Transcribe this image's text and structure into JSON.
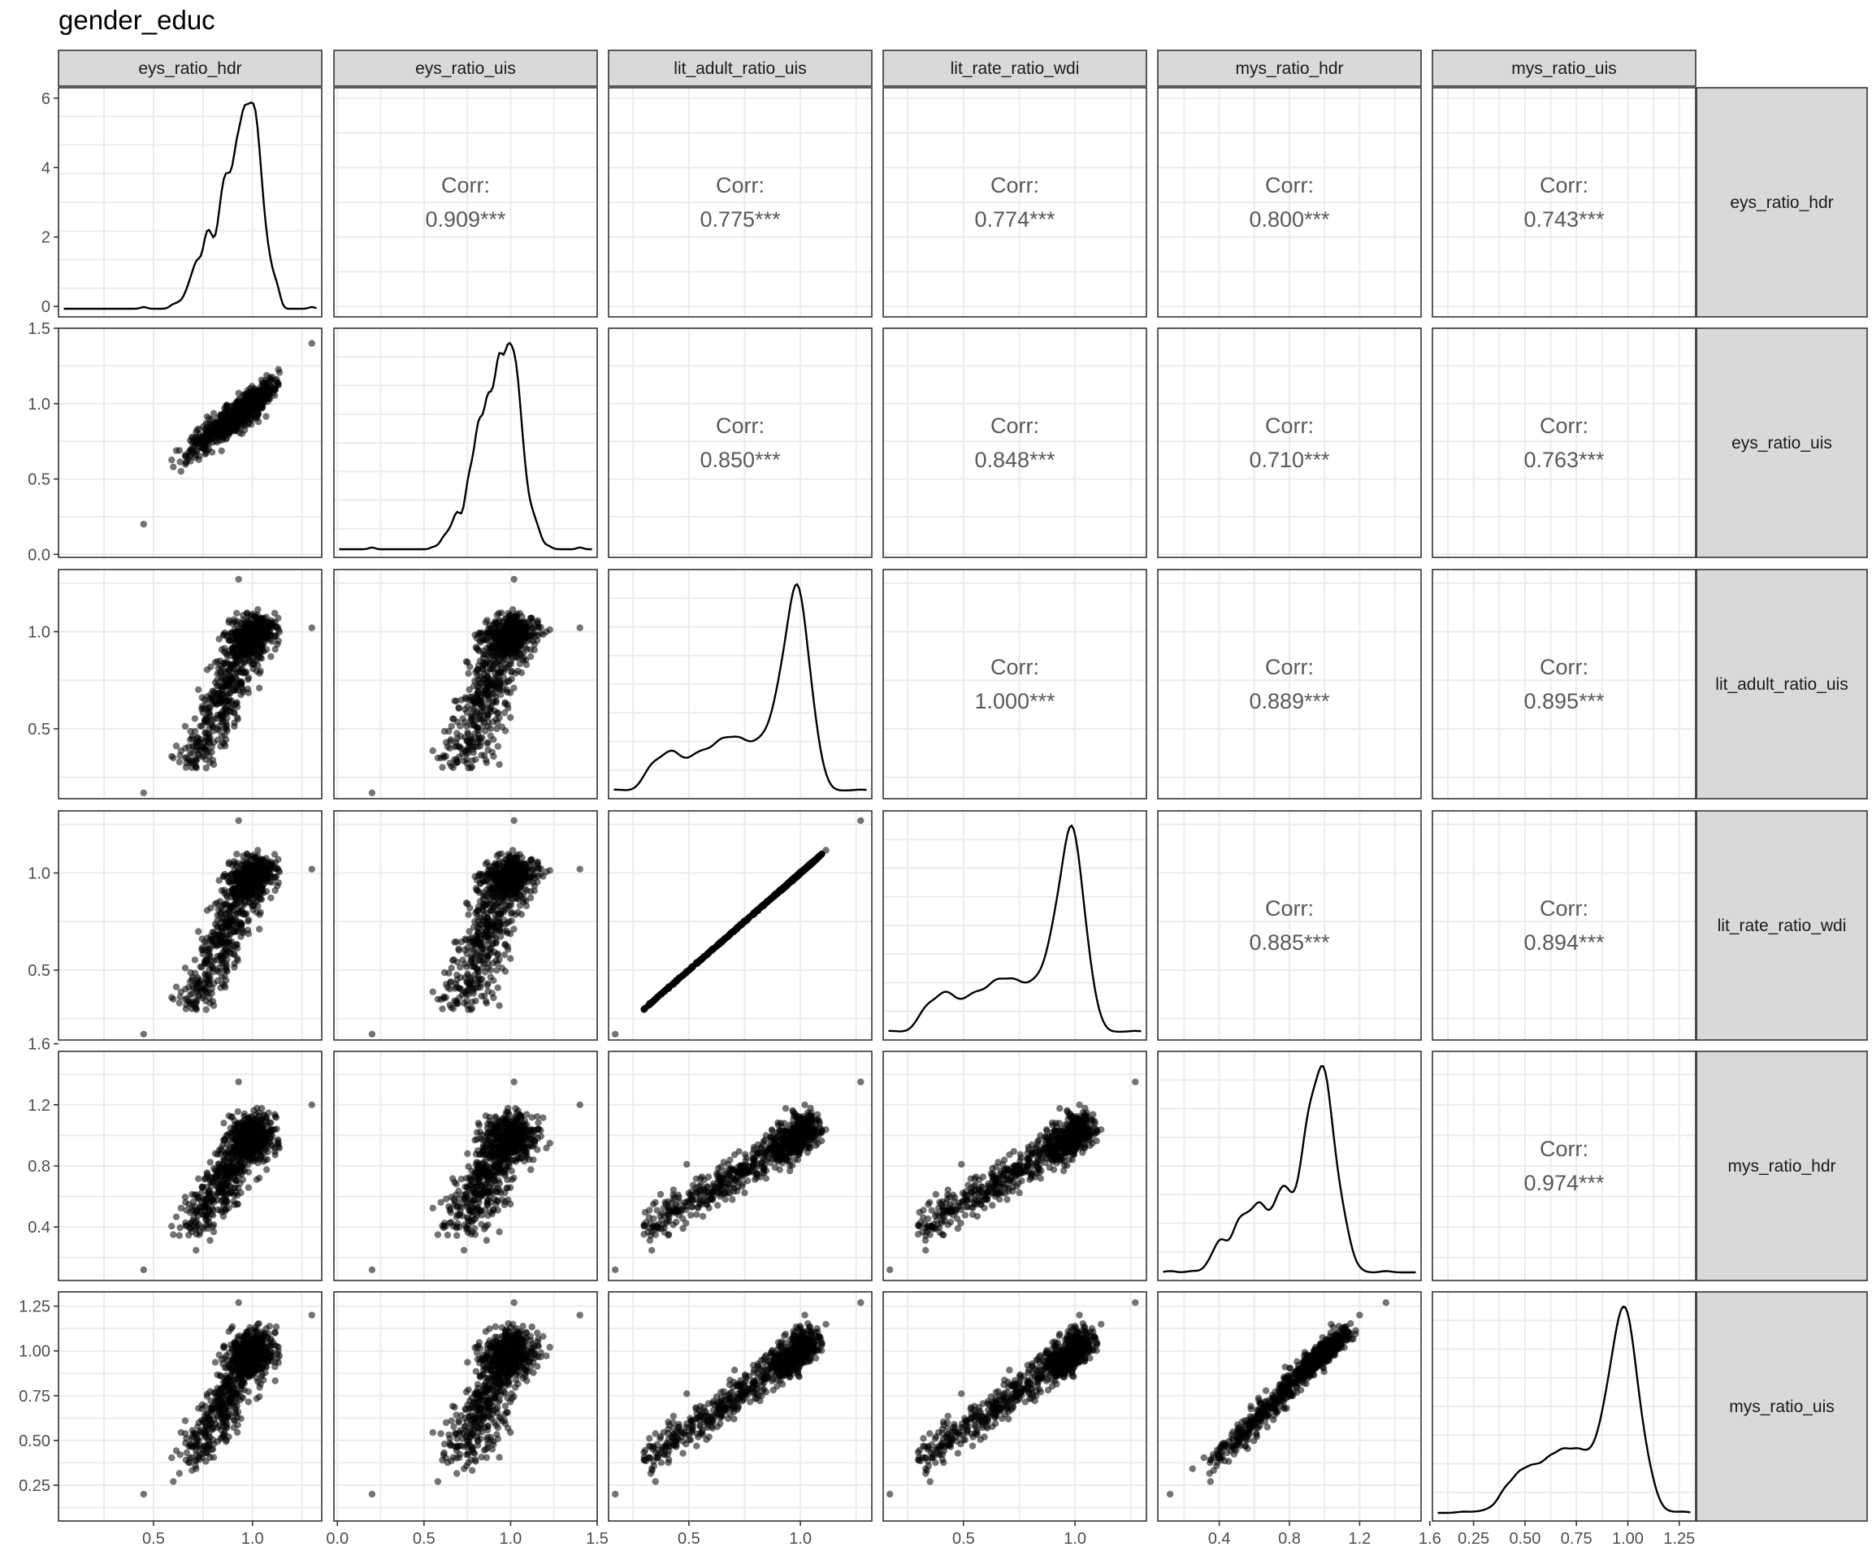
{
  "title": "gender_educ",
  "variables": [
    "eys_ratio_hdr",
    "eys_ratio_uis",
    "lit_adult_ratio_uis",
    "lit_rate_ratio_wdi",
    "mys_ratio_hdr",
    "mys_ratio_uis"
  ],
  "corr_label": "Corr:",
  "chart_data": {
    "type": "scatter",
    "subtype": "pairs-matrix",
    "title": "gender_educ",
    "grid": true,
    "columns": [
      "eys_ratio_hdr",
      "eys_ratio_uis",
      "lit_adult_ratio_uis",
      "lit_rate_ratio_wdi",
      "mys_ratio_hdr",
      "mys_ratio_uis"
    ],
    "x_axes": [
      {
        "ticks": [
          "0.5",
          "1.0"
        ],
        "tick_values": [
          0.5,
          1.0
        ],
        "range": [
          0.02,
          1.35
        ]
      },
      {
        "ticks": [
          "0.0",
          "0.5",
          "1.0",
          "1.5"
        ],
        "tick_values": [
          0.0,
          0.5,
          1.0,
          1.5
        ],
        "range": [
          -0.02,
          1.5
        ]
      },
      {
        "ticks": [
          "0.5",
          "1.0"
        ],
        "tick_values": [
          0.5,
          1.0
        ],
        "range": [
          0.14,
          1.32
        ]
      },
      {
        "ticks": [
          "0.5",
          "1.0"
        ],
        "tick_values": [
          0.5,
          1.0
        ],
        "range": [
          0.14,
          1.32
        ]
      },
      {
        "ticks": [
          "0.4",
          "0.8",
          "1.2",
          "1.6"
        ],
        "tick_values": [
          0.4,
          0.8,
          1.2,
          1.6
        ],
        "range": [
          0.05,
          1.55
        ]
      },
      {
        "ticks": [
          "0.25",
          "0.50",
          "0.75",
          "1.00",
          "1.25"
        ],
        "tick_values": [
          0.25,
          0.5,
          0.75,
          1.0,
          1.25
        ],
        "range": [
          0.05,
          1.33
        ]
      }
    ],
    "y_axes": [
      {
        "ticks": [
          "0",
          "2",
          "4",
          "6"
        ],
        "tick_values": [
          0,
          2,
          4,
          6
        ],
        "range": [
          -0.3,
          6.3
        ]
      },
      {
        "ticks": [
          "0.0",
          "0.5",
          "1.0",
          "1.5"
        ],
        "tick_values": [
          0.0,
          0.5,
          1.0,
          1.5
        ],
        "range": [
          -0.02,
          1.5
        ]
      },
      {
        "ticks": [
          "0.5",
          "1.0"
        ],
        "tick_values": [
          0.5,
          1.0
        ],
        "range": [
          0.14,
          1.32
        ]
      },
      {
        "ticks": [
          "0.5",
          "1.0"
        ],
        "tick_values": [
          0.5,
          1.0
        ],
        "range": [
          0.14,
          1.32
        ]
      },
      {
        "ticks": [
          "0.4",
          "0.8",
          "1.2",
          "1.6"
        ],
        "tick_values": [
          0.4,
          0.8,
          1.2,
          1.6
        ],
        "range": [
          0.05,
          1.55
        ]
      },
      {
        "ticks": [
          "0.25",
          "0.50",
          "0.75",
          "1.00",
          "1.25"
        ],
        "tick_values": [
          0.25,
          0.5,
          0.75,
          1.0,
          1.25
        ],
        "range": [
          0.05,
          1.33
        ]
      }
    ],
    "correlations": [
      {
        "row": 0,
        "col": 1,
        "value": "0.909***"
      },
      {
        "row": 0,
        "col": 2,
        "value": "0.775***"
      },
      {
        "row": 0,
        "col": 3,
        "value": "0.774***"
      },
      {
        "row": 0,
        "col": 4,
        "value": "0.800***"
      },
      {
        "row": 0,
        "col": 5,
        "value": "0.743***"
      },
      {
        "row": 1,
        "col": 2,
        "value": "0.850***"
      },
      {
        "row": 1,
        "col": 3,
        "value": "0.848***"
      },
      {
        "row": 1,
        "col": 4,
        "value": "0.710***"
      },
      {
        "row": 1,
        "col": 5,
        "value": "0.763***"
      },
      {
        "row": 2,
        "col": 3,
        "value": "1.000***"
      },
      {
        "row": 2,
        "col": 4,
        "value": "0.889***"
      },
      {
        "row": 2,
        "col": 5,
        "value": "0.895***"
      },
      {
        "row": 3,
        "col": 4,
        "value": "0.885***"
      },
      {
        "row": 3,
        "col": 5,
        "value": "0.894***"
      },
      {
        "row": 4,
        "col": 5,
        "value": "0.974***"
      }
    ],
    "density_peaks": [
      {
        "variable": "eys_ratio_hdr",
        "peak_x": 1.05,
        "peak_y": 6.0
      },
      {
        "variable": "eys_ratio_uis",
        "peak_x": 1.0,
        "peak_y": 1.43
      },
      {
        "variable": "lit_adult_ratio_uis",
        "peak_x": 0.99,
        "peak_y": 1.25
      },
      {
        "variable": "lit_rate_ratio_wdi",
        "peak_x": 0.99,
        "peak_y": 1.25
      },
      {
        "variable": "mys_ratio_hdr",
        "peak_x": 0.98,
        "peak_y": 1.5
      },
      {
        "variable": "mys_ratio_uis",
        "peak_x": 0.99,
        "peak_y": 1.27
      }
    ]
  }
}
